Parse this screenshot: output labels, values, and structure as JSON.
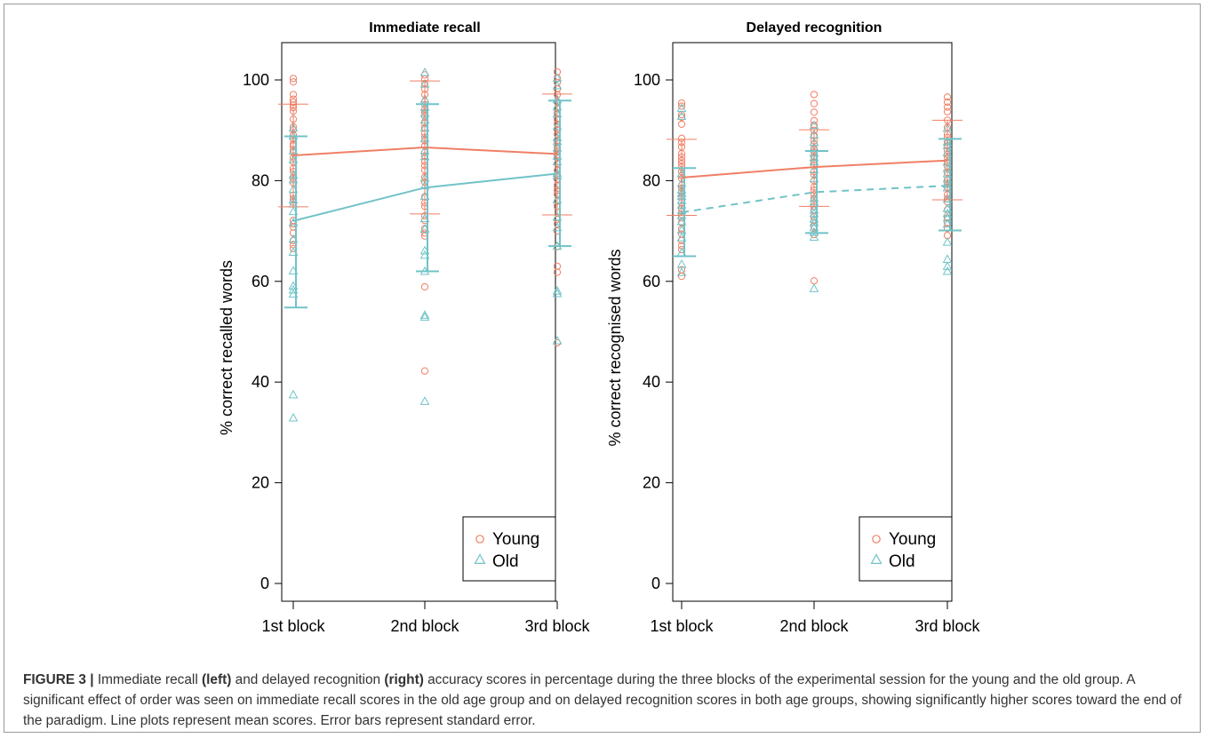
{
  "colors": {
    "young": "#F07F65",
    "old": "#70C3C7",
    "axis": "#000000"
  },
  "legend": {
    "young": "Young",
    "old": "Old",
    "placement": "bottom-right"
  },
  "caption": {
    "label": "FIGURE 3 |",
    "t1": " Immediate recall ",
    "b1": "(left)",
    "t2": " and delayed recognition ",
    "b2": "(right)",
    "t3": " accuracy scores in percentage during the three blocks of the experimental session for the young and the old group. A significant effect of order was seen on immediate recall scores in the old age group and on delayed recognition scores in both age groups, showing significantly higher scores toward the end of the paradigm. Line plots represent mean scores. Error bars represent standard error."
  },
  "chart_data": [
    {
      "type": "scatter",
      "title": "Immediate recall",
      "ylabel": "% correct recalled words",
      "categories": [
        "1st block",
        "2nd block",
        "3rd block"
      ],
      "ylim": [
        0,
        100
      ],
      "yticks": [
        "0",
        "20",
        "40",
        "60",
        "80",
        "100"
      ],
      "grid": false,
      "series": [
        {
          "name": "Young",
          "means": [
            85,
            86.6,
            85.3
          ],
          "error": [
            [
              74.8,
              95.2
            ],
            [
              73.4,
              99.8
            ],
            [
              73.2,
              97.2
            ]
          ],
          "line_style": "solid",
          "points": [
            [
              100.3,
              99.6,
              97.1,
              96.2,
              95.6,
              95,
              94.5,
              93.8,
              92.2,
              90.7,
              90.1,
              89.1,
              88.3,
              87.3,
              86.9,
              86.1,
              85.6,
              84.5,
              83.7,
              82.4,
              81.8,
              80.4,
              79.6,
              77.1,
              76.4,
              75.7,
              72.1,
              71.4,
              70.8,
              69.6,
              68.1,
              67.3,
              66.5
            ],
            [
              101,
              100.2,
              99.3,
              98.2,
              97.1,
              95.7,
              95.1,
              94.2,
              93.6,
              92.8,
              91.4,
              90.5,
              89.3,
              88.6,
              87.9,
              86.9,
              85.6,
              84.9,
              83.8,
              83,
              82.1,
              80.7,
              79.7,
              76.8,
              75.6,
              74.9,
              73,
              72.1,
              70.5,
              69.6,
              69,
              58.9,
              42.2
            ],
            [
              101.6,
              100.4,
              99.5,
              98.2,
              97.1,
              95.6,
              94.3,
              93.4,
              92.2,
              91.2,
              90.1,
              89.2,
              88,
              86.6,
              85.8,
              85.1,
              84.5,
              83.4,
              82,
              81.1,
              80.3,
              79,
              78.1,
              77.3,
              75.9,
              74.9,
              72.3,
              71.4,
              70,
              66.9,
              63,
              61.8,
              47.8
            ]
          ]
        },
        {
          "name": "Old",
          "means": [
            72,
            78.6,
            81.4
          ],
          "error": [
            [
              54.8,
              88.8
            ],
            [
              62,
              95.2
            ],
            [
              67,
              95.9
            ]
          ],
          "line_style": "solid",
          "points": [
            [
              90.5,
              88.9,
              85.9,
              84.2,
              81.2,
              80.2,
              78.3,
              76.2,
              75.4,
              73.9,
              71.7,
              68.4,
              65.8,
              62.1,
              59.1,
              58.3,
              57.5,
              37.5,
              32.9
            ],
            [
              101.5,
              99.2,
              96.2,
              94.6,
              93.4,
              92.1,
              90.5,
              88.4,
              86,
              84.8,
              80.5,
              79,
              76.9,
              72.5,
              70.4,
              66.1,
              65.2,
              62,
              53.3,
              52.9,
              36.2
            ],
            [
              100.4,
              98.9,
              96.1,
              94.7,
              93.3,
              90.8,
              88.6,
              87.8,
              86.5,
              84.9,
              83.8,
              81.5,
              81,
              76.2,
              72.8,
              70.7,
              67,
              58.1,
              57.6,
              48.2
            ]
          ]
        }
      ]
    },
    {
      "type": "scatter",
      "title": "Delayed recognition",
      "ylabel": "% correct recognised words",
      "categories": [
        "1st block",
        "2nd block",
        "3rd block"
      ],
      "ylim": [
        0,
        100
      ],
      "yticks": [
        "0",
        "20",
        "40",
        "60",
        "80",
        "100"
      ],
      "grid": false,
      "series": [
        {
          "name": "Young",
          "means": [
            80.6,
            82.7,
            84
          ],
          "error": [
            [
              73.1,
              88.2
            ],
            [
              74.9,
              90.1
            ],
            [
              76.2,
              92
            ]
          ],
          "line_style": "solid",
          "points": [
            [
              95.4,
              94.8,
              93.1,
              92.6,
              91.2,
              88.4,
              87.6,
              86.7,
              85.4,
              84.7,
              84,
              83.4,
              82.7,
              81.8,
              81,
              80.4,
              79.1,
              78.5,
              77.7,
              76.8,
              75.6,
              74.4,
              73.3,
              72.6,
              71.7,
              70.4,
              69.4,
              68.1,
              67.1,
              66.3,
              62.3,
              61
            ],
            [
              97.1,
              95.3,
              93.6,
              91.9,
              91,
              90,
              89,
              87.9,
              87.2,
              86.3,
              85.7,
              84.8,
              83.7,
              83,
              81.8,
              81.1,
              80,
              78.7,
              78.1,
              77.2,
              76.5,
              74.9,
              74.2,
              72.8,
              72.1,
              70.9,
              69.3,
              60.1
            ],
            [
              96.6,
              95.6,
              94.6,
              93.7,
              92,
              90.6,
              89.2,
              88.6,
              87.7,
              86.9,
              86,
              85.2,
              84.6,
              83.7,
              82.9,
              81.6,
              80.2,
              79.5,
              78.7,
              77.2,
              76.4,
              75.8,
              74.2,
              72.6,
              71.6,
              70.5,
              69.1
            ]
          ]
        },
        {
          "name": "Old",
          "means": [
            73.7,
            77.7,
            79
          ],
          "error": [
            [
              65,
              82.5
            ],
            [
              69.6,
              85.9
            ],
            [
              70.1,
              88.3
            ]
          ],
          "line_style": "dashed",
          "points": [
            [
              94.4,
              92.8,
              81.4,
              79.5,
              78.2,
              77.5,
              76.9,
              76.1,
              75.2,
              74.1,
              73.1,
              71.9,
              70.2,
              68.7,
              65.7,
              63.4,
              61.8
            ],
            [
              91,
              89.1,
              87.6,
              86.6,
              85.5,
              84.6,
              83.8,
              82.2,
              80.4,
              76.5,
              75.8,
              74.2,
              73.5,
              72.4,
              71.7,
              70.7,
              69.8,
              68.8,
              58.6
            ],
            [
              90.4,
              87.7,
              87,
              85.6,
              83.7,
              82.5,
              81.4,
              80.4,
              79.3,
              78.6,
              76.4,
              74.5,
              73.5,
              72.6,
              71.4,
              67.8,
              64.4,
              63,
              62
            ]
          ]
        }
      ]
    }
  ]
}
